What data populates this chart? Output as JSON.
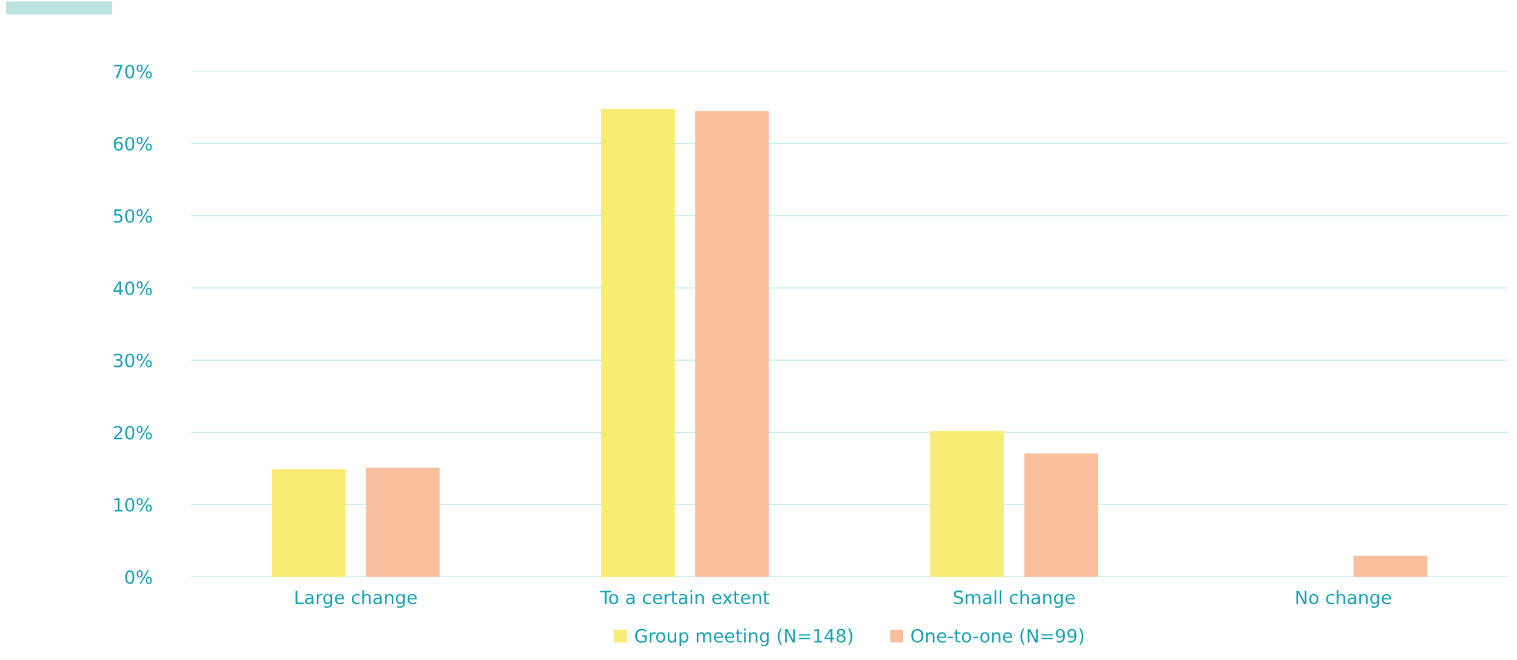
{
  "chart_data": {
    "type": "bar",
    "categories": [
      "Large change",
      "To a certain extent",
      "Small change",
      "No change"
    ],
    "series": [
      {
        "name": "Group meeting (N=148)",
        "color": "#f9ec74",
        "values": [
          14.9,
          64.8,
          20.2,
          0
        ]
      },
      {
        "name": "One-to-one (N=99)",
        "color": "#f7bf9e",
        "values": [
          15.1,
          64.5,
          17.1,
          2.9
        ]
      }
    ],
    "ylim": [
      0,
      70
    ],
    "yticks": [
      {
        "value": 0,
        "label": "0%"
      },
      {
        "value": 10,
        "label": "10%"
      },
      {
        "value": 20,
        "label": "20%"
      },
      {
        "value": 30,
        "label": "30%"
      },
      {
        "value": 40,
        "label": "40%"
      },
      {
        "value": 50,
        "label": "50%"
      },
      {
        "value": 60,
        "label": "60%"
      },
      {
        "value": 70,
        "label": "70%"
      }
    ],
    "grid": "y",
    "legend": "bottom"
  }
}
